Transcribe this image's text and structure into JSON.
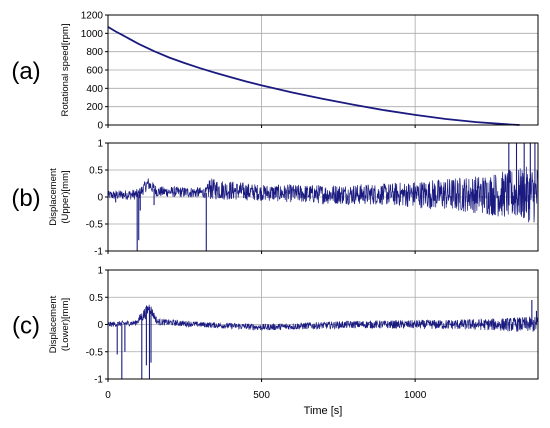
{
  "colors": {
    "series": "#1a1a80",
    "grid": "#a9a9a9",
    "axis": "#000000",
    "panel_bg": "#ffffff"
  },
  "x_axis": {
    "label": "Time [s]",
    "ticks": [
      0,
      500,
      1000
    ],
    "range": [
      0,
      1400
    ]
  },
  "chart_data": [
    {
      "panel_label": "(a)",
      "type": "line",
      "ylabel_lines": [
        "Rotational speed[rpm]"
      ],
      "ylim": [
        0,
        1200
      ],
      "yticks": [
        0,
        200,
        400,
        600,
        800,
        1000,
        1200
      ],
      "grid": true,
      "series": [
        {
          "x": [
            0,
            25,
            50,
            100,
            150,
            200,
            250,
            300,
            350,
            400,
            450,
            500,
            600,
            700,
            800,
            900,
            1000,
            1100,
            1200,
            1300,
            1340
          ],
          "y": [
            1070,
            1020,
            975,
            885,
            805,
            735,
            675,
            620,
            568,
            520,
            475,
            432,
            355,
            285,
            220,
            162,
            110,
            65,
            32,
            8,
            0
          ]
        }
      ]
    },
    {
      "panel_label": "(b)",
      "type": "line",
      "ylabel_lines": [
        "Displacement",
        "(Upper)[mm]"
      ],
      "ylim": [
        -1,
        1
      ],
      "yticks": [
        -1,
        -0.5,
        0,
        0.5,
        1
      ],
      "grid": true,
      "series": [
        {
          "noise_profile": {
            "x": [
              0,
              100,
              130,
              160,
              320,
              330,
              500,
              700,
              900,
              1000,
              1100,
              1200,
              1300,
              1400
            ],
            "mean": [
              0.03,
              0.05,
              0.25,
              0.1,
              0.08,
              0.15,
              0.08,
              0.05,
              0.05,
              0.05,
              0.05,
              0.05,
              0.05,
              0.05
            ],
            "amplitude": [
              0.08,
              0.1,
              0.12,
              0.1,
              0.1,
              0.2,
              0.15,
              0.18,
              0.2,
              0.25,
              0.3,
              0.35,
              0.45,
              0.55
            ]
          },
          "spikes": [
            {
              "x": 25,
              "y": -0.1
            },
            {
              "x": 95,
              "y": -1.0
            },
            {
              "x": 100,
              "y": -0.8
            },
            {
              "x": 105,
              "y": -0.25
            },
            {
              "x": 150,
              "y": -0.15
            },
            {
              "x": 320,
              "y": -1.0
            },
            {
              "x": 330,
              "y": 0.3
            },
            {
              "x": 1305,
              "y": 1.0
            },
            {
              "x": 1330,
              "y": 1.0
            },
            {
              "x": 1355,
              "y": 1.0
            },
            {
              "x": 1375,
              "y": 1.0
            },
            {
              "x": 1390,
              "y": 1.0
            }
          ]
        }
      ]
    },
    {
      "panel_label": "(c)",
      "type": "line",
      "ylabel_lines": [
        "Displacement",
        "(Lower)[mm]"
      ],
      "ylim": [
        -1,
        1
      ],
      "yticks": [
        -1,
        -0.5,
        0,
        0.5,
        1
      ],
      "grid": true,
      "series": [
        {
          "noise_profile": {
            "x": [
              0,
              90,
              120,
              135,
              160,
              300,
              500,
              800,
              1000,
              1200,
              1400
            ],
            "mean": [
              0.0,
              0.03,
              0.2,
              0.32,
              0.05,
              0.0,
              -0.05,
              0.0,
              0.0,
              0.0,
              0.0
            ],
            "amplitude": [
              0.05,
              0.05,
              0.12,
              0.1,
              0.06,
              0.05,
              0.06,
              0.07,
              0.08,
              0.1,
              0.15
            ]
          },
          "spikes": [
            {
              "x": 30,
              "y": -0.55
            },
            {
              "x": 45,
              "y": -1.0
            },
            {
              "x": 55,
              "y": -0.5
            },
            {
              "x": 110,
              "y": -1.0
            },
            {
              "x": 125,
              "y": -0.75
            },
            {
              "x": 135,
              "y": -1.0
            },
            {
              "x": 140,
              "y": -0.7
            },
            {
              "x": 1380,
              "y": 0.45
            },
            {
              "x": 1395,
              "y": 0.25
            }
          ]
        }
      ]
    }
  ]
}
